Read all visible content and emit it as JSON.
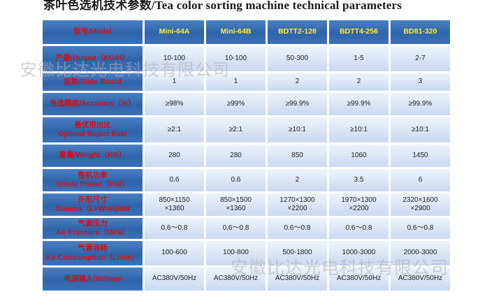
{
  "title": "茶叶色选机技术参数/Tea color sorting machine technical parameters",
  "header": {
    "label": "型号/Model",
    "models": [
      "Mini-64A",
      "Mini-64B",
      "BDTT2-128",
      "BDTT4-256",
      "BD81-320"
    ]
  },
  "rows": [
    {
      "label": [
        "产量/Output（KG/H）"
      ],
      "values": [
        "10-100",
        "10-100",
        "50-300",
        "1-5",
        "2-7"
      ]
    },
    {
      "label": [
        "层数/Slide Board"
      ],
      "values": [
        "1",
        "1",
        "2",
        "2",
        "3"
      ]
    },
    {
      "label": [
        "色选精度/Accuracy（%）"
      ],
      "values": [
        "≥98%",
        "≥99%",
        "≥99.9%",
        "≥99.9%",
        "≥99.9%"
      ]
    },
    {
      "label": [
        "最优带出比",
        "Optimal Reject Rate"
      ],
      "values": [
        "≥2:1",
        "≥2:1",
        "≥10:1",
        "≥10:1",
        "≥10:1"
      ]
    },
    {
      "label": [
        "重量/Weight（KG）"
      ],
      "values": [
        "280",
        "280",
        "850",
        "1060",
        "1450"
      ]
    },
    {
      "label": [
        "整机功率",
        "Whole Power（KW）"
      ],
      "values": [
        "0.6",
        "0.6",
        "2",
        "3.5",
        "6"
      ]
    },
    {
      "label": [
        "外形尺寸",
        "Dimens（L×W×H)MM"
      ],
      "values": [
        [
          "850×1150",
          "×1360"
        ],
        [
          "850×1500",
          "×1360"
        ],
        [
          "1270×1300",
          "×2200"
        ],
        [
          "1970×1300",
          "×2200"
        ],
        [
          "2320×1600",
          "×2900"
        ]
      ]
    },
    {
      "label": [
        "气源压力",
        "Air Pressure（MPa）"
      ],
      "values": [
        "0.6～0.8",
        "0.6～0.8",
        "0.6～0.8",
        "0.6～0.8",
        "0.6～0.8"
      ]
    },
    {
      "label": [
        "气源消耗",
        "Air Consumption（L/min）"
      ],
      "values": [
        "100-600",
        "100-800",
        "500-1800",
        "1000-3000",
        "2000-3000"
      ]
    },
    {
      "label": [
        "电源输入/Voltage"
      ],
      "values": [
        "AC380V/50Hz",
        "AC380V/50Hz",
        "AC380V/50Hz",
        "AC380V/50Hz",
        "AC380V/50Hz"
      ]
    }
  ],
  "watermark": "安徽比达光电科技有限公司",
  "colors": {
    "label_bg": "#2f64aa",
    "label_text": "#d0101a",
    "header_text": "#ffee33",
    "value_bg": "#dbe6f6"
  }
}
